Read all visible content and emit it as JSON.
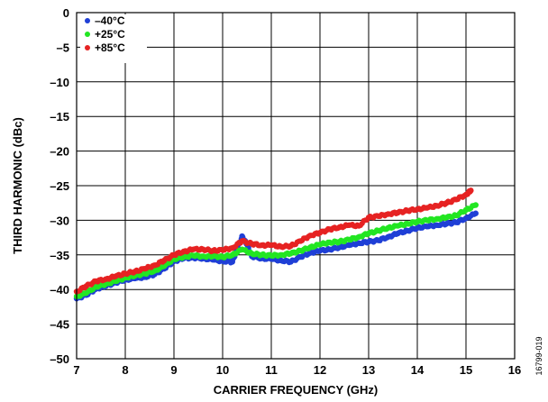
{
  "chart_data": {
    "type": "scatter",
    "title": "",
    "xlabel": "CARRIER FREQUENCY (GHz)",
    "ylabel": "THIRD HARMONIC (dBc)",
    "xlim": [
      7,
      16
    ],
    "ylim": [
      -50,
      0
    ],
    "x_ticks": [
      7,
      8,
      9,
      10,
      11,
      12,
      13,
      14,
      15,
      16
    ],
    "y_ticks": [
      0,
      -5,
      -10,
      -15,
      -20,
      -25,
      -30,
      -35,
      -40,
      -45,
      -50
    ],
    "x_tick_labels": [
      "7",
      "8",
      "9",
      "10",
      "11",
      "12",
      "13",
      "14",
      "15",
      "16"
    ],
    "y_tick_labels": [
      "0",
      "–5",
      "–10",
      "–15",
      "–20",
      "–25",
      "–30",
      "–35",
      "–40",
      "–45",
      "–50"
    ],
    "grid": true,
    "legend_position": "top-left",
    "figure_id": "16799-019",
    "series": [
      {
        "name": "–40°C",
        "color": "#1f3fd6",
        "points": [
          [
            7.0,
            -41.3
          ],
          [
            7.2,
            -40.8
          ],
          [
            7.4,
            -39.9
          ],
          [
            7.6,
            -39.5
          ],
          [
            7.8,
            -39.0
          ],
          [
            8.0,
            -38.6
          ],
          [
            8.2,
            -38.4
          ],
          [
            8.4,
            -38.2
          ],
          [
            8.6,
            -37.8
          ],
          [
            8.8,
            -37.0
          ],
          [
            9.0,
            -35.9
          ],
          [
            9.2,
            -35.5
          ],
          [
            9.4,
            -35.4
          ],
          [
            9.6,
            -35.5
          ],
          [
            9.8,
            -35.7
          ],
          [
            10.0,
            -35.9
          ],
          [
            10.2,
            -36.0
          ],
          [
            10.3,
            -34.2
          ],
          [
            10.4,
            -32.3
          ],
          [
            10.5,
            -33.5
          ],
          [
            10.6,
            -35.2
          ],
          [
            10.8,
            -35.5
          ],
          [
            11.0,
            -35.6
          ],
          [
            11.2,
            -35.8
          ],
          [
            11.4,
            -36.0
          ],
          [
            11.6,
            -35.3
          ],
          [
            11.8,
            -34.7
          ],
          [
            12.0,
            -34.4
          ],
          [
            12.2,
            -34.2
          ],
          [
            12.4,
            -33.9
          ],
          [
            12.6,
            -33.6
          ],
          [
            12.8,
            -33.3
          ],
          [
            13.0,
            -33.1
          ],
          [
            13.2,
            -32.9
          ],
          [
            13.4,
            -32.4
          ],
          [
            13.6,
            -31.9
          ],
          [
            13.8,
            -31.5
          ],
          [
            14.0,
            -31.1
          ],
          [
            14.2,
            -30.9
          ],
          [
            14.4,
            -30.7
          ],
          [
            14.6,
            -30.5
          ],
          [
            14.8,
            -30.3
          ],
          [
            15.0,
            -29.7
          ],
          [
            15.2,
            -29.0
          ]
        ]
      },
      {
        "name": "+25°C",
        "color": "#22e622",
        "points": [
          [
            7.0,
            -41.0
          ],
          [
            7.2,
            -40.5
          ],
          [
            7.4,
            -39.6
          ],
          [
            7.6,
            -39.2
          ],
          [
            7.8,
            -38.8
          ],
          [
            8.0,
            -38.3
          ],
          [
            8.2,
            -38.0
          ],
          [
            8.4,
            -37.7
          ],
          [
            8.6,
            -37.3
          ],
          [
            8.8,
            -36.6
          ],
          [
            9.0,
            -35.6
          ],
          [
            9.2,
            -35.3
          ],
          [
            9.4,
            -35.1
          ],
          [
            9.6,
            -35.2
          ],
          [
            9.8,
            -35.2
          ],
          [
            10.0,
            -35.3
          ],
          [
            10.2,
            -35.0
          ],
          [
            10.4,
            -34.2
          ],
          [
            10.6,
            -34.8
          ],
          [
            10.8,
            -35.0
          ],
          [
            11.0,
            -35.1
          ],
          [
            11.2,
            -35.0
          ],
          [
            11.4,
            -34.8
          ],
          [
            11.6,
            -34.4
          ],
          [
            11.8,
            -33.9
          ],
          [
            12.0,
            -33.5
          ],
          [
            12.2,
            -33.2
          ],
          [
            12.4,
            -33.1
          ],
          [
            12.6,
            -32.8
          ],
          [
            12.8,
            -32.4
          ],
          [
            13.0,
            -31.9
          ],
          [
            13.2,
            -31.5
          ],
          [
            13.4,
            -31.1
          ],
          [
            13.6,
            -30.8
          ],
          [
            13.8,
            -30.5
          ],
          [
            14.0,
            -30.2
          ],
          [
            14.2,
            -30.0
          ],
          [
            14.4,
            -29.8
          ],
          [
            14.6,
            -29.6
          ],
          [
            14.8,
            -29.3
          ],
          [
            15.0,
            -28.5
          ],
          [
            15.2,
            -27.8
          ]
        ]
      },
      {
        "name": "+85°C",
        "color": "#e62222",
        "points": [
          [
            7.0,
            -40.3
          ],
          [
            7.2,
            -39.5
          ],
          [
            7.4,
            -38.8
          ],
          [
            7.6,
            -38.5
          ],
          [
            7.8,
            -38.1
          ],
          [
            8.0,
            -37.7
          ],
          [
            8.2,
            -37.4
          ],
          [
            8.4,
            -37.0
          ],
          [
            8.6,
            -36.5
          ],
          [
            8.8,
            -35.8
          ],
          [
            9.0,
            -35.0
          ],
          [
            9.2,
            -34.5
          ],
          [
            9.4,
            -34.2
          ],
          [
            9.6,
            -34.2
          ],
          [
            9.8,
            -34.4
          ],
          [
            10.0,
            -34.3
          ],
          [
            10.2,
            -34.0
          ],
          [
            10.4,
            -33.0
          ],
          [
            10.6,
            -33.4
          ],
          [
            10.8,
            -33.6
          ],
          [
            11.0,
            -33.6
          ],
          [
            11.2,
            -33.8
          ],
          [
            11.4,
            -33.7
          ],
          [
            11.6,
            -33.0
          ],
          [
            11.8,
            -32.2
          ],
          [
            12.0,
            -31.8
          ],
          [
            12.2,
            -31.3
          ],
          [
            12.4,
            -31.0
          ],
          [
            12.6,
            -30.7
          ],
          [
            12.8,
            -30.8
          ],
          [
            13.0,
            -29.6
          ],
          [
            13.2,
            -29.4
          ],
          [
            13.4,
            -29.1
          ],
          [
            13.6,
            -28.9
          ],
          [
            13.8,
            -28.6
          ],
          [
            14.0,
            -28.4
          ],
          [
            14.2,
            -28.2
          ],
          [
            14.4,
            -27.9
          ],
          [
            14.6,
            -27.5
          ],
          [
            14.8,
            -27.0
          ],
          [
            15.0,
            -26.3
          ],
          [
            15.1,
            -25.7
          ]
        ]
      }
    ]
  }
}
